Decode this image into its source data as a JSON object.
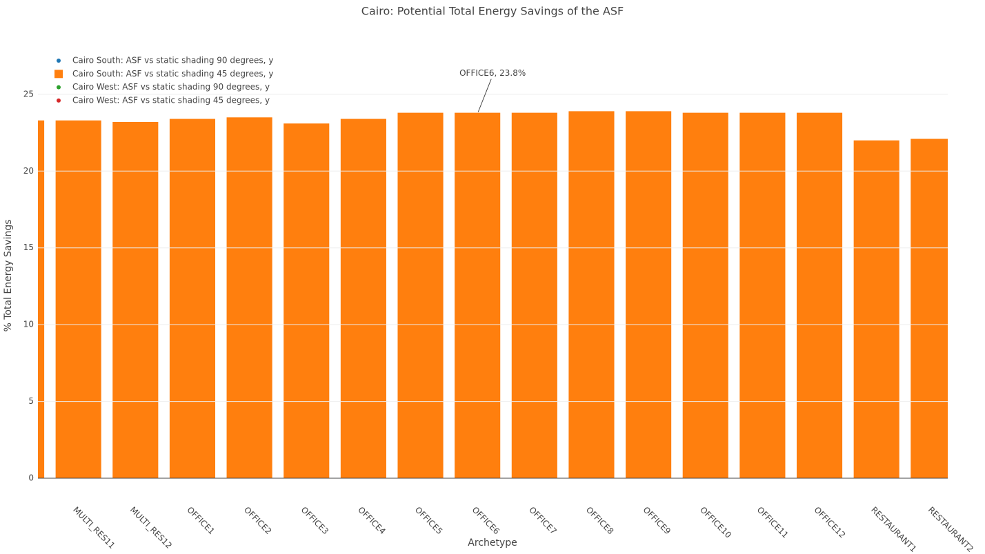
{
  "chart_data": {
    "type": "bar",
    "title": "Cairo: Potential Total Energy Savings of the ASF",
    "x_label": "Archetype",
    "y_label": "% Total Energy Savings",
    "categories": [
      null,
      "MULTI_RES11",
      "MULTI_RES12",
      "OFFICE1",
      "OFFICE2",
      "OFFICE3",
      "OFFICE4",
      "OFFICE5",
      "OFFICE6",
      "OFFICE7",
      "OFFICE8",
      "OFFICE9",
      "OFFICE10",
      "OFFICE11",
      "OFFICE12",
      "RESTAURANT1",
      "RESTAURANT2"
    ],
    "series": [
      {
        "name": "Cairo South: ASF vs static shading 90 degrees, y",
        "color": "#1f77b4",
        "legend_symbol": "circle",
        "values": [
          null,
          null,
          null,
          null,
          null,
          null,
          null,
          null,
          null,
          null,
          null,
          null,
          null,
          null,
          null,
          null,
          null
        ]
      },
      {
        "name": "Cairo South: ASF vs static shading 45 degrees, y",
        "color": "#ff7f0e",
        "legend_symbol": "square",
        "values": [
          23.3,
          23.3,
          23.2,
          23.4,
          23.5,
          23.1,
          23.4,
          23.8,
          23.8,
          23.8,
          23.9,
          23.9,
          23.8,
          23.8,
          23.8,
          22.0,
          22.1
        ]
      },
      {
        "name": "Cairo West: ASF vs static shading 90 degrees, y",
        "color": "#2ca02c",
        "legend_symbol": "circle",
        "values": [
          null,
          null,
          null,
          null,
          null,
          null,
          null,
          null,
          null,
          null,
          null,
          null,
          null,
          null,
          null,
          null,
          null
        ]
      },
      {
        "name": "Cairo West: ASF vs static shading 45 degrees, y",
        "color": "#d62728",
        "legend_symbol": "circle",
        "values": [
          null,
          null,
          null,
          null,
          null,
          null,
          null,
          null,
          null,
          null,
          null,
          null,
          null,
          null,
          null,
          null,
          null
        ]
      }
    ],
    "xlim": [
      0.29,
      16.25
    ],
    "ylim": [
      0,
      26.7
    ],
    "yticks": [
      0,
      5,
      10,
      15,
      20,
      25
    ],
    "grid": true,
    "legend": "top-left",
    "annotations": [
      {
        "text": "OFFICE6, 23.8%",
        "x": "OFFICE6",
        "y": 23.8
      }
    ]
  }
}
